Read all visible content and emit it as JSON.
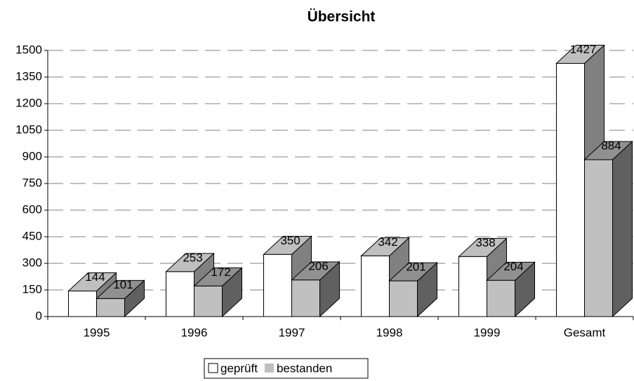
{
  "chart_data": {
    "type": "bar3d",
    "title": "Übersicht",
    "categories": [
      "1995",
      "1996",
      "1997",
      "1998",
      "1999",
      "Gesamt"
    ],
    "series": [
      {
        "name": "geprüft",
        "color": "#ffffff",
        "values": [
          144,
          253,
          350,
          342,
          338,
          1427
        ]
      },
      {
        "name": "bestanden",
        "color": "#c0c0c0",
        "values": [
          101,
          172,
          206,
          201,
          204,
          884
        ]
      }
    ],
    "ylim": [
      0,
      1500
    ],
    "yticks": [
      0,
      150,
      300,
      450,
      600,
      750,
      900,
      1050,
      1200,
      1350,
      1500
    ],
    "grid": true,
    "legend": "bottom"
  }
}
